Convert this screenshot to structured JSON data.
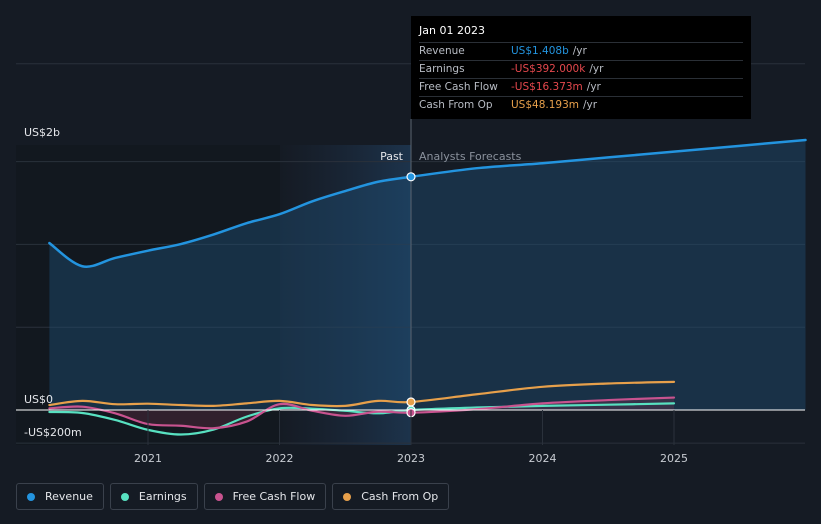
{
  "chart_data": {
    "type": "line",
    "y_tick_labels": [
      "US$2b",
      "US$0",
      "-US$200m"
    ],
    "x_tick_labels": [
      "2021",
      "2022",
      "2023",
      "2024",
      "2025"
    ],
    "divider_labels": {
      "past": "Past",
      "forecast": "Analysts Forecasts"
    },
    "ylim": [
      -200,
      2000
    ],
    "y_unit": "US$m",
    "series": [
      {
        "name": "Revenue",
        "color": "#2394df",
        "x": [
          2020.25,
          2020.5,
          2020.75,
          2021.0,
          2021.25,
          2021.5,
          2021.75,
          2022.0,
          2022.25,
          2022.5,
          2022.75,
          2023.0,
          2023.5,
          2024.0,
          2024.5,
          2025.0,
          2025.5,
          2026.0
        ],
        "y": [
          1008,
          868,
          918,
          962,
          1002,
          1060,
          1128,
          1182,
          1260,
          1322,
          1378,
          1408,
          1460,
          1490,
          1525,
          1560,
          1595,
          1630
        ]
      },
      {
        "name": "Earnings",
        "color": "#58e1c1",
        "x": [
          2020.25,
          2020.5,
          2020.75,
          2021.0,
          2021.25,
          2021.5,
          2021.75,
          2022.0,
          2022.25,
          2022.5,
          2022.75,
          2023.0,
          2023.5,
          2024.0,
          2024.5,
          2025.0
        ],
        "y": [
          -12,
          -18,
          -60,
          -120,
          -148,
          -118,
          -40,
          10,
          8,
          -5,
          -20,
          -0.392,
          15,
          25,
          32,
          40
        ]
      },
      {
        "name": "Free Cash Flow",
        "color": "#c8538f",
        "x": [
          2020.25,
          2020.5,
          2020.75,
          2021.0,
          2021.25,
          2021.5,
          2021.75,
          2022.0,
          2022.25,
          2022.5,
          2022.75,
          2023.0,
          2023.5,
          2024.0,
          2024.5,
          2025.0
        ],
        "y": [
          10,
          20,
          -20,
          -85,
          -95,
          -110,
          -70,
          35,
          -5,
          -35,
          -10,
          -16.373,
          5,
          40,
          60,
          75
        ]
      },
      {
        "name": "Cash From Op",
        "color": "#e7a04b",
        "x": [
          2020.25,
          2020.5,
          2020.75,
          2021.0,
          2021.25,
          2021.5,
          2021.75,
          2022.0,
          2022.25,
          2022.5,
          2022.75,
          2023.0,
          2023.5,
          2024.0,
          2024.5,
          2025.0
        ],
        "y": [
          30,
          55,
          35,
          38,
          30,
          25,
          40,
          55,
          30,
          25,
          55,
          48.193,
          95,
          140,
          160,
          170
        ]
      }
    ]
  },
  "tooltip": {
    "date": "Jan 01 2023",
    "rows": [
      {
        "label": "Revenue",
        "value": "US$1.408b",
        "unit": "/yr",
        "color": "#2394df"
      },
      {
        "label": "Earnings",
        "value": "-US$392.000k",
        "unit": "/yr",
        "color": "#e5484d"
      },
      {
        "label": "Free Cash Flow",
        "value": "-US$16.373m",
        "unit": "/yr",
        "color": "#e5484d"
      },
      {
        "label": "Cash From Op",
        "value": "US$48.193m",
        "unit": "/yr",
        "color": "#e7a04b"
      }
    ]
  },
  "legend": [
    {
      "label": "Revenue",
      "color": "#2394df"
    },
    {
      "label": "Earnings",
      "color": "#58e1c1"
    },
    {
      "label": "Free Cash Flow",
      "color": "#c8538f"
    },
    {
      "label": "Cash From Op",
      "color": "#e7a04b"
    }
  ]
}
